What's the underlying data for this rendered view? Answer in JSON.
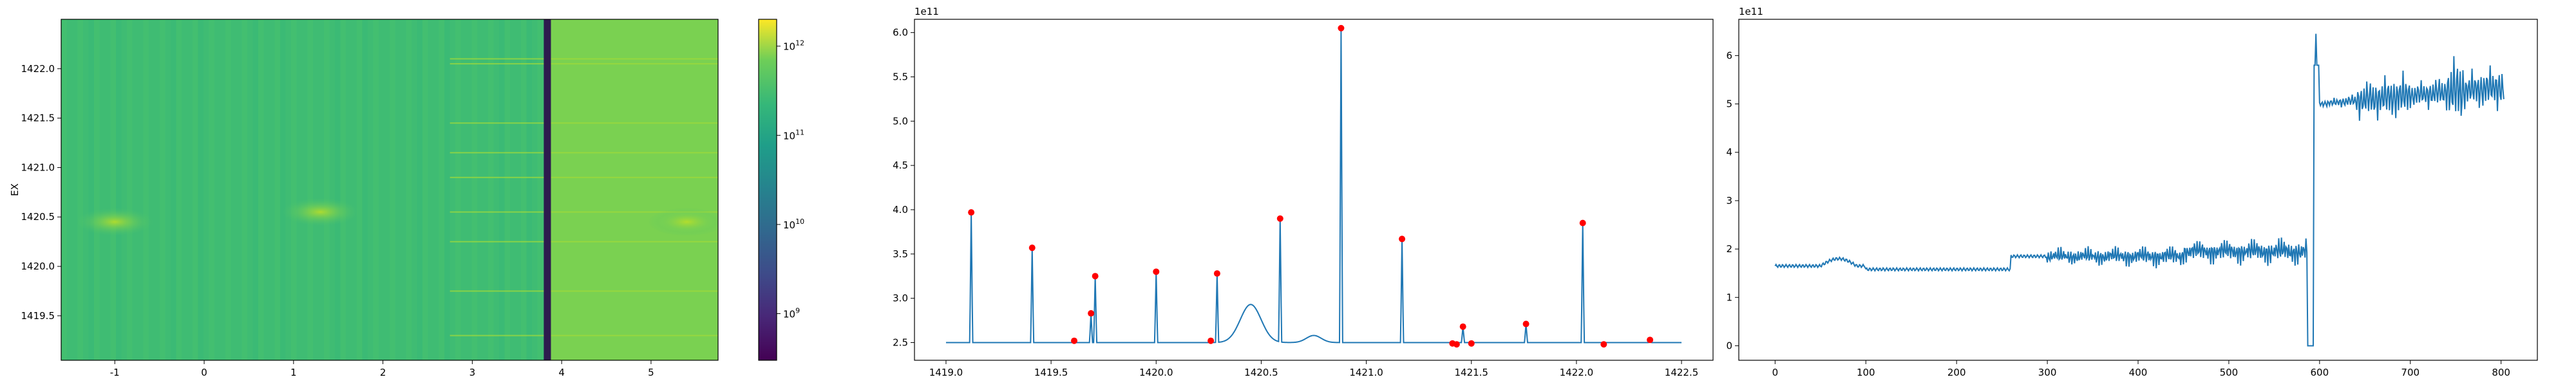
{
  "chart_data": [
    {
      "type": "heatmap",
      "ylabel": "EX",
      "xlim": [
        -1.6,
        5.75
      ],
      "ylim": [
        1419.05,
        1422.5
      ],
      "xticks": [
        -1,
        0,
        1,
        2,
        3,
        4,
        5
      ],
      "yticks": [
        1419.5,
        1420.0,
        1420.5,
        1421.0,
        1421.5,
        1422.0
      ],
      "ytick_labels": [
        "1419.5",
        "1420.0",
        "1420.5",
        "1421.0",
        "1421.5",
        "1422.0"
      ],
      "dark_band_x": [
        3.8,
        3.88
      ],
      "bright_region_x": [
        3.88,
        5.75
      ],
      "horizontal_streaks_y": [
        1419.3,
        1419.75,
        1420.25,
        1420.55,
        1420.9,
        1421.15,
        1421.45,
        1422.05,
        1422.1
      ],
      "hot_spots": [
        {
          "x": -1.0,
          "y": 1420.45
        },
        {
          "x": 1.3,
          "y": 1420.55
        },
        {
          "x": 5.4,
          "y": 1420.45
        }
      ],
      "colorbar": {
        "scale": "log",
        "range": [
          300000000.0,
          2000000000000.0
        ],
        "ticks": [
          1000000000.0,
          10000000000.0,
          100000000000.0,
          1000000000000.0
        ],
        "tick_labels": [
          "10^9",
          "10^10",
          "10^11",
          "10^12"
        ],
        "colormap": "viridis"
      }
    },
    {
      "type": "line",
      "exponent_label": "1e11",
      "xlim": [
        1418.85,
        1422.65
      ],
      "ylim": [
        2.3,
        6.15
      ],
      "xticks": [
        1419.0,
        1419.5,
        1420.0,
        1420.5,
        1421.0,
        1421.5,
        1422.0,
        1422.5
      ],
      "xtick_labels": [
        "1419.0",
        "1419.5",
        "1420.0",
        "1420.5",
        "1421.0",
        "1421.5",
        "1422.0",
        "1422.5"
      ],
      "yticks": [
        2.5,
        3.0,
        3.5,
        4.0,
        4.5,
        5.0,
        5.5,
        6.0
      ],
      "ytick_labels": [
        "2.5",
        "3.0",
        "3.5",
        "4.0",
        "4.5",
        "5.0",
        "5.5",
        "6.0"
      ],
      "baseline": 2.5,
      "x_start": 1419.0,
      "x_end": 1422.5,
      "peaks": [
        {
          "x": 1419.12,
          "y": 3.97
        },
        {
          "x": 1419.41,
          "y": 3.57
        },
        {
          "x": 1419.61,
          "y": 2.52
        },
        {
          "x": 1419.69,
          "y": 2.83
        },
        {
          "x": 1419.71,
          "y": 3.25
        },
        {
          "x": 1420.0,
          "y": 3.3
        },
        {
          "x": 1420.26,
          "y": 2.52
        },
        {
          "x": 1420.29,
          "y": 3.28
        },
        {
          "x": 1420.59,
          "y": 3.9
        },
        {
          "x": 1420.88,
          "y": 6.05
        },
        {
          "x": 1421.17,
          "y": 3.67
        },
        {
          "x": 1421.41,
          "y": 2.49
        },
        {
          "x": 1421.43,
          "y": 2.48
        },
        {
          "x": 1421.46,
          "y": 2.68
        },
        {
          "x": 1421.5,
          "y": 2.49
        },
        {
          "x": 1421.76,
          "y": 2.71
        },
        {
          "x": 1422.03,
          "y": 3.85
        },
        {
          "x": 1422.13,
          "y": 2.48
        },
        {
          "x": 1422.35,
          "y": 2.53
        }
      ],
      "bumps": [
        {
          "x": 1420.45,
          "y": 2.93,
          "width": 0.07
        },
        {
          "x": 1420.75,
          "y": 2.58,
          "width": 0.05
        }
      ]
    },
    {
      "type": "line",
      "exponent_label": "1e11",
      "xlim": [
        -40,
        840
      ],
      "ylim": [
        -0.3,
        6.75
      ],
      "xticks": [
        0,
        100,
        200,
        300,
        400,
        500,
        600,
        700,
        800
      ],
      "xtick_labels": [
        "0",
        "100",
        "200",
        "300",
        "400",
        "500",
        "600",
        "700",
        "800"
      ],
      "yticks": [
        0,
        1,
        2,
        3,
        4,
        5,
        6
      ],
      "ytick_labels": [
        "0",
        "1",
        "2",
        "3",
        "4",
        "5",
        "6"
      ],
      "segments": [
        {
          "x0": 0,
          "x1": 100,
          "level": 1.65
        },
        {
          "x0": 100,
          "x1": 260,
          "level": 1.58
        },
        {
          "x0": 260,
          "x1": 450,
          "level": 1.85
        },
        {
          "x0": 450,
          "x1": 586,
          "level": 1.95
        }
      ],
      "drop": {
        "x0": 587,
        "x1": 593,
        "level": 0.0
      },
      "spike": {
        "x": 596,
        "y": 6.45
      },
      "tail": {
        "x0": 600,
        "x1": 803,
        "start": 5.0,
        "end": 5.35
      }
    }
  ]
}
